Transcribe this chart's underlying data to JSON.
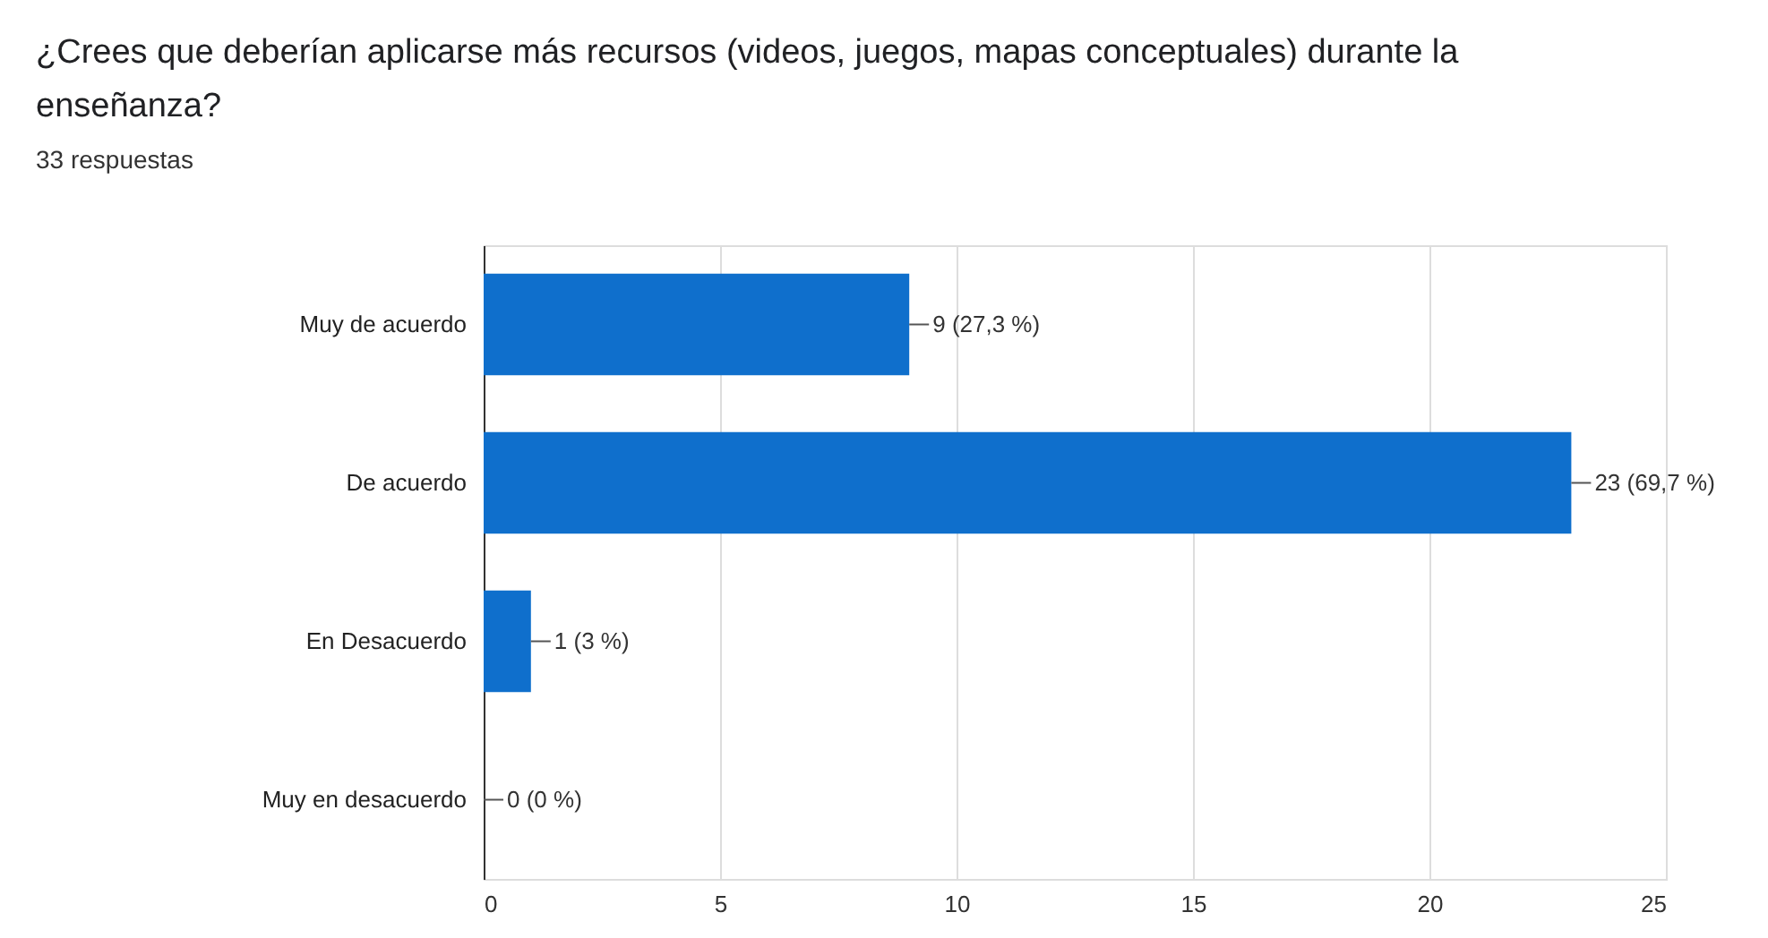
{
  "chart_data": {
    "type": "bar",
    "orientation": "horizontal",
    "title": "¿Crees que deberían aplicarse más recursos (videos, juegos, mapas conceptuales) durante la enseñanza?",
    "subtitle": "33 respuestas",
    "categories": [
      "Muy de acuerdo",
      "De acuerdo",
      "En Desacuerdo",
      "Muy en desacuerdo"
    ],
    "values": [
      9,
      23,
      1,
      0
    ],
    "value_labels": [
      "9 (27,3 %)",
      "23 (69,7 %)",
      "1 (3 %)",
      "0 (0 %)"
    ],
    "color": "#0f6fcc",
    "xlim": [
      0,
      25
    ],
    "xticks": [
      0,
      5,
      10,
      15,
      20,
      25
    ],
    "grid": "x"
  }
}
